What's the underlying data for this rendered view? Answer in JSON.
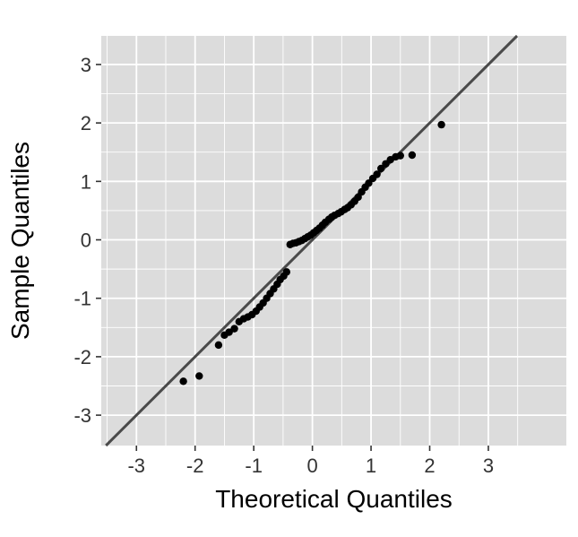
{
  "chart_data": {
    "type": "scatter",
    "title": "",
    "xlabel": "Theoretical Quantiles",
    "ylabel": "Sample Quantiles",
    "xlim": [
      -3.6,
      4.33
    ],
    "ylim": [
      -3.52,
      3.49
    ],
    "x_ticks": [
      -3,
      -2,
      -1,
      0,
      1,
      2,
      3
    ],
    "y_ticks": [
      -3,
      -2,
      -1,
      0,
      1,
      2,
      3
    ],
    "x_minor_ticks": [
      -3.5,
      -2.5,
      -1.5,
      -0.5,
      0.5,
      1.5,
      2.5,
      3.5
    ],
    "y_minor_ticks": [
      -2.5,
      -1.5,
      -0.5,
      0.5,
      1.5,
      2.5
    ],
    "grid": "on",
    "legend": "none",
    "reference_line": {
      "slope": 1,
      "intercept": 0
    },
    "points": [
      [
        -2.2,
        -2.42
      ],
      [
        -1.93,
        -2.33
      ],
      [
        -1.6,
        -1.8
      ],
      [
        -1.5,
        -1.63
      ],
      [
        -1.42,
        -1.58
      ],
      [
        -1.33,
        -1.52
      ],
      [
        -1.25,
        -1.4
      ],
      [
        -1.17,
        -1.35
      ],
      [
        -1.1,
        -1.32
      ],
      [
        -1.03,
        -1.28
      ],
      [
        -0.96,
        -1.22
      ],
      [
        -0.9,
        -1.15
      ],
      [
        -0.84,
        -1.08
      ],
      [
        -0.78,
        -1.0
      ],
      [
        -0.72,
        -0.92
      ],
      [
        -0.66,
        -0.84
      ],
      [
        -0.6,
        -0.76
      ],
      [
        -0.55,
        -0.68
      ],
      [
        -0.49,
        -0.62
      ],
      [
        -0.44,
        -0.55
      ],
      [
        -0.38,
        -0.08
      ],
      [
        -0.33,
        -0.06
      ],
      [
        -0.28,
        -0.05
      ],
      [
        -0.23,
        -0.03
      ],
      [
        -0.18,
        -0.01
      ],
      [
        -0.13,
        0.02
      ],
      [
        -0.08,
        0.05
      ],
      [
        -0.03,
        0.08
      ],
      [
        0.02,
        0.12
      ],
      [
        0.07,
        0.16
      ],
      [
        0.12,
        0.2
      ],
      [
        0.17,
        0.25
      ],
      [
        0.22,
        0.3
      ],
      [
        0.28,
        0.35
      ],
      [
        0.33,
        0.39
      ],
      [
        0.38,
        0.42
      ],
      [
        0.44,
        0.45
      ],
      [
        0.49,
        0.48
      ],
      [
        0.55,
        0.52
      ],
      [
        0.6,
        0.55
      ],
      [
        0.66,
        0.6
      ],
      [
        0.72,
        0.66
      ],
      [
        0.78,
        0.73
      ],
      [
        0.84,
        0.82
      ],
      [
        0.9,
        0.9
      ],
      [
        0.96,
        0.97
      ],
      [
        1.03,
        1.05
      ],
      [
        1.1,
        1.12
      ],
      [
        1.17,
        1.22
      ],
      [
        1.25,
        1.3
      ],
      [
        1.33,
        1.37
      ],
      [
        1.42,
        1.42
      ],
      [
        1.5,
        1.44
      ],
      [
        1.7,
        1.45
      ],
      [
        2.2,
        1.97
      ]
    ],
    "colors": {
      "panel_background": "#DCDCDC",
      "grid_major": "#FFFFFF",
      "grid_minor": "#FFFFFF",
      "point": "#000000",
      "reference_line": "#4A4A4A",
      "tick_mark": "#333333",
      "tick_text": "#333333",
      "title_text": "#000000"
    }
  }
}
